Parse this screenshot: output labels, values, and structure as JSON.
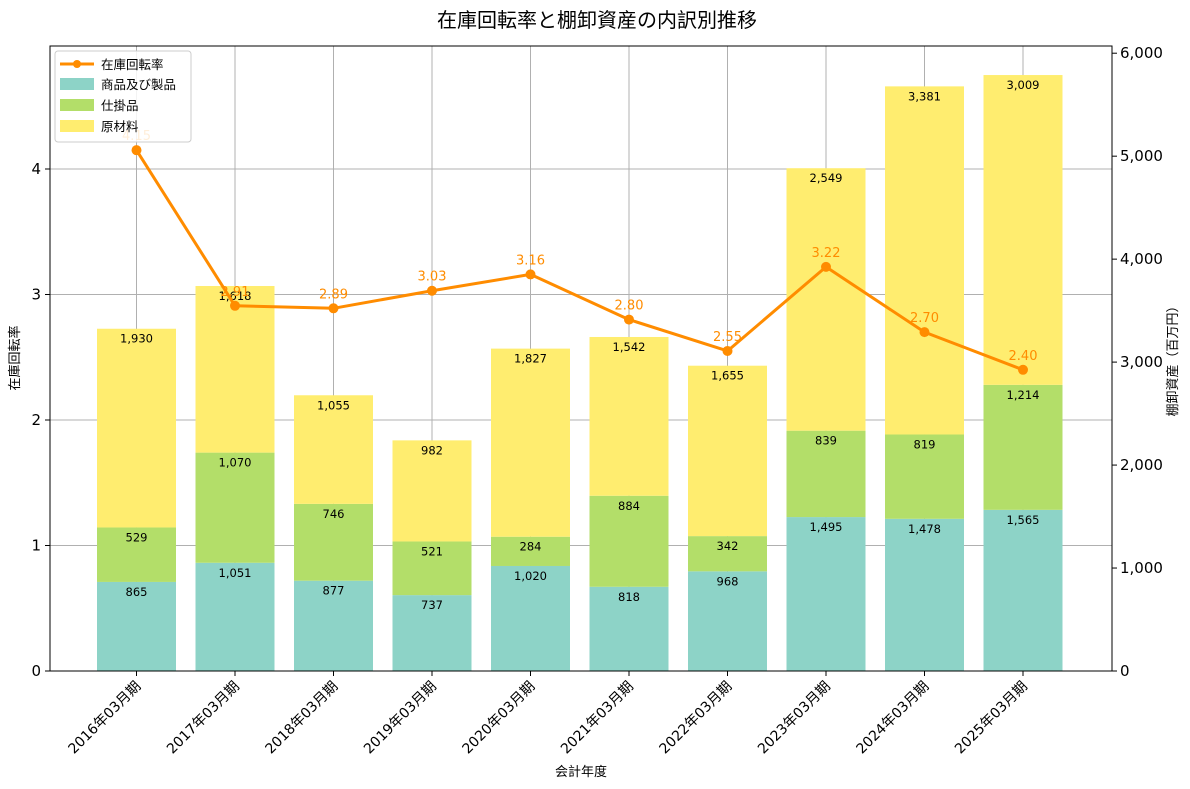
{
  "chart_data": {
    "type": "bar",
    "title": "在庫回転率と棚卸資産の内訳別推移",
    "xlabel": "会計年度",
    "ylabel_left": "在庫回転率",
    "ylabel_right": "棚卸資産（百万円）",
    "categories": [
      "2016年03月期",
      "2017年03月期",
      "2018年03月期",
      "2019年03月期",
      "2020年03月期",
      "2021年03月期",
      "2022年03月期",
      "2023年03月期",
      "2024年03月期",
      "2025年03月期"
    ],
    "stacked_series": [
      {
        "name": "商品及び製品",
        "color": "#8dd3c7",
        "values": [
          865,
          1051,
          877,
          737,
          1020,
          818,
          968,
          1495,
          1478,
          1565
        ],
        "labels": [
          "865",
          "1,051",
          "877",
          "737",
          "1,020",
          "818",
          "968",
          "1,495",
          "1,478",
          "1,565"
        ]
      },
      {
        "name": "仕掛品",
        "color": "#b3de69",
        "values": [
          529,
          1070,
          746,
          521,
          284,
          884,
          342,
          839,
          819,
          1214
        ],
        "labels": [
          "529",
          "1,070",
          "746",
          "521",
          "284",
          "884",
          "342",
          "839",
          "819",
          "1,214"
        ]
      },
      {
        "name": "原材料",
        "color": "#ffed6f",
        "values": [
          1930,
          1618,
          1055,
          982,
          1827,
          1542,
          1655,
          2549,
          3381,
          3009
        ],
        "labels": [
          "1,930",
          "1,618",
          "1,055",
          "982",
          "1,827",
          "1,542",
          "1,655",
          "2,549",
          "3,381",
          "3,009"
        ]
      }
    ],
    "line_series": {
      "name": "在庫回転率",
      "color": "#ff8c00",
      "values": [
        4.15,
        2.91,
        2.89,
        3.03,
        3.16,
        2.8,
        2.55,
        3.22,
        2.7,
        2.4
      ],
      "labels": [
        "4.15",
        "2.91",
        "2.89",
        "3.03",
        "3.16",
        "2.80",
        "2.55",
        "3.22",
        "2.70",
        "2.40"
      ]
    },
    "ylim_left": [
      0,
      4.98
    ],
    "ylim_right": [
      0,
      6070
    ],
    "yticks_left": [
      "0",
      "1",
      "2",
      "3",
      "4"
    ],
    "yticks_right": [
      "0",
      "1,000",
      "2,000",
      "3,000",
      "4,000",
      "5,000",
      "6,000"
    ],
    "grid": true,
    "legend_position": "upper-left"
  }
}
